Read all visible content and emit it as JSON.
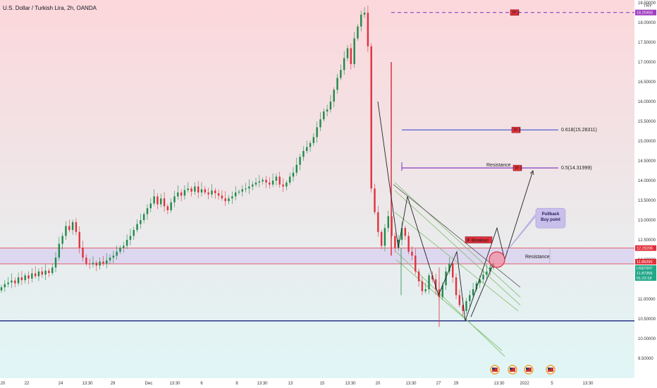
{
  "header": {
    "title": "U.S. Dollar / Turkish Lira, 2h, OANDA",
    "currency": "TRY"
  },
  "colors": {
    "bg_top": "#fcd7db",
    "bg_bottom": "#e0f6f6",
    "up": "#1f8a4a",
    "down": "#e0313c",
    "resistance_line": "#e0626e",
    "zone_fill": "#d9d2ef",
    "support_line": "#1a237e",
    "fib_blue": "#2f3fd1",
    "fib_purple": "#7b2fbf",
    "tp_dash": "#7b2fbf",
    "channel": "#7cbf6a",
    "annotation_bg": "#e0313c",
    "bubble_bg": "#c8c0ea",
    "price_tag": "#22a888",
    "tag_purple": "#a03fc0",
    "tag_red": "#e0313c"
  },
  "chart_data": {
    "type": "candlestick",
    "symbol": "USDTRY",
    "title": "U.S. Dollar / Turkish Lira, 2h, OANDA",
    "ylim": [
      9.5,
      18.5
    ],
    "y_ticks": [
      "18.50000",
      "18.00000",
      "17.50000",
      "17.00000",
      "16.50000",
      "16.00000",
      "15.50000",
      "15.00000",
      "14.50000",
      "14.00000",
      "13.50000",
      "13.00000",
      "12.50000",
      "12.00000",
      "11.50000",
      "11.00000",
      "10.50000",
      "10.00000",
      "9.50000"
    ],
    "y_tick_values": [
      18.5,
      18.0,
      17.5,
      17.0,
      16.5,
      16.0,
      15.5,
      15.0,
      14.5,
      14.0,
      13.5,
      13.0,
      12.5,
      12.0,
      11.5,
      11.0,
      10.5,
      10.0,
      9.5
    ],
    "x_ticks": [
      "20",
      "22",
      "24",
      "13:30",
      "29",
      "Dec",
      "13:30",
      "6",
      "8",
      "13:30",
      "13",
      "15",
      "13:30",
      "20",
      "13:30",
      "27",
      "29",
      "13:30",
      "2022",
      "5",
      "13:30"
    ],
    "price_tags": [
      {
        "label": "18.25450",
        "value": 18.2545,
        "style": "purple"
      },
      {
        "label": "12.29206",
        "value": 12.29206,
        "style": "red"
      },
      {
        "label": "11.89295",
        "value": 11.89295,
        "style": "red"
      },
      {
        "label": "USDTRY",
        "value": 11.87356,
        "style": "green"
      },
      {
        "label": "11.87356",
        "value": 11.87356,
        "style": "green"
      },
      {
        "label": "01:22:18",
        "value": 11.87356,
        "style": "green"
      }
    ],
    "levels": {
      "tp3": 18.2545,
      "fib_618": 15.28311,
      "fib_5": 14.31999,
      "resistance_top": 12.29206,
      "resistance_bottom": 11.89295,
      "support": 10.45
    },
    "annotations": {
      "tp3": "TP 3",
      "tp2": "TP 2",
      "tp1": "TP 1",
      "fib_618_label": "0.618(15.28311)",
      "fib_5_label": "0.5(14.31999)",
      "resistance_upper_label": "Resistance",
      "resistance_zone_label": "Resistance",
      "breakout": "IF Breakout",
      "pullback": [
        "Pullback",
        "Buy point"
      ]
    },
    "series": [
      {
        "values": [
          11.3,
          11.38,
          11.42,
          11.47,
          11.4,
          11.55,
          11.48,
          11.6,
          11.52,
          11.65,
          11.58,
          11.7,
          11.62,
          11.72,
          11.66,
          11.8,
          12.05,
          12.4,
          12.6,
          12.85,
          12.75,
          12.95,
          12.7,
          12.3,
          12.05,
          11.9,
          11.88,
          11.92,
          11.85,
          11.95,
          11.9,
          11.98,
          12.05,
          12.1,
          12.2,
          12.3,
          12.35,
          12.5,
          12.6,
          12.75,
          12.9,
          13.0,
          13.15,
          13.3,
          13.42,
          13.6,
          13.4,
          13.55,
          13.35,
          13.25,
          13.45,
          13.6,
          13.7,
          13.62,
          13.76,
          13.8,
          13.72,
          13.85,
          13.7,
          13.78,
          13.7,
          13.65,
          13.75,
          13.68,
          13.62,
          13.55,
          13.48,
          13.55,
          13.6,
          13.7,
          13.72,
          13.78,
          13.8,
          13.85,
          13.9,
          13.95,
          13.98,
          14.02,
          13.95,
          13.9,
          14.0,
          14.1,
          13.9,
          13.85,
          13.95,
          14.1,
          14.2,
          14.4,
          14.6,
          14.75,
          14.85,
          14.95,
          15.1,
          15.35,
          15.55,
          15.75,
          15.8,
          16.0,
          16.3,
          16.6,
          16.8,
          17.1,
          17.35,
          16.95,
          17.6,
          17.9,
          18.2,
          18.25,
          17.4,
          13.8,
          13.2,
          12.7,
          12.35,
          12.8,
          13.1,
          12.6,
          12.3,
          12.5,
          12.8,
          12.6,
          12.2,
          12.1,
          11.7,
          11.45,
          11.2,
          11.25,
          11.6,
          11.5,
          11.25,
          11.05,
          11.35,
          11.7,
          11.9,
          11.55,
          11.1,
          10.85,
          10.7,
          10.95,
          11.1,
          11.25,
          11.4,
          11.5,
          11.62,
          11.7,
          11.8,
          11.87
        ]
      }
    ]
  },
  "events": [
    "us-flag-icon",
    "us-flag-icon",
    "us-flag-icon",
    "us-flag-icon"
  ]
}
